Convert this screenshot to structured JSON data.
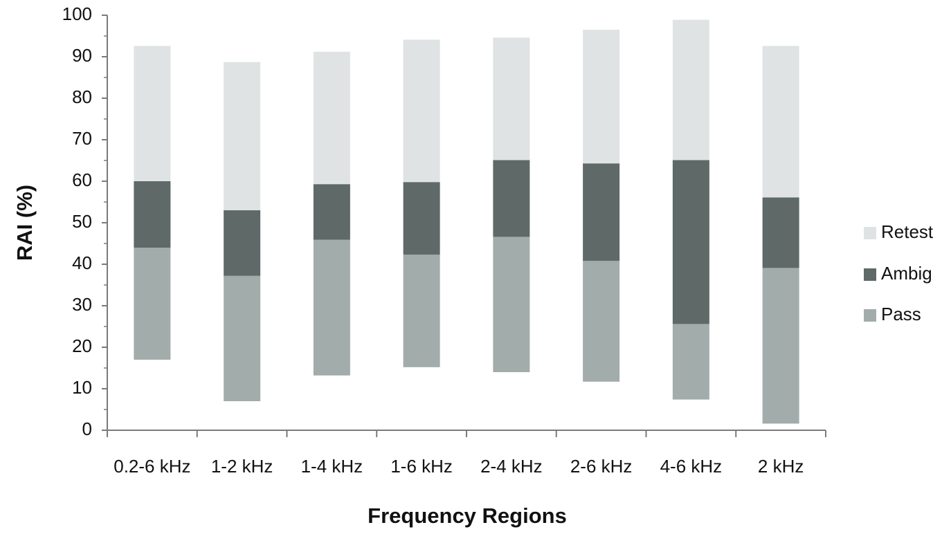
{
  "chart_data": {
    "type": "bar",
    "stacked": "floating",
    "xlabel": "Frequency Regions",
    "ylabel": "RAI (%)",
    "ylim": [
      0,
      100
    ],
    "yticks": [
      0,
      10,
      20,
      30,
      40,
      50,
      60,
      70,
      80,
      90,
      100
    ],
    "grid": false,
    "legend_position": "right",
    "categories": [
      "0.2-6 kHz",
      "1-2 kHz",
      "1-4 kHz",
      "1-6 kHz",
      "2-4 kHz",
      "2-6 kHz",
      "4-6 kHz",
      "2 kHz"
    ],
    "base": [
      17,
      7,
      13.2,
      15.2,
      14,
      11.7,
      7.4,
      1.6
    ],
    "series": [
      {
        "name": "Pass",
        "color": "#a2acab",
        "values": [
          27,
          30.2,
          32.7,
          27.1,
          32.6,
          29.1,
          18.2,
          37.5
        ]
      },
      {
        "name": "Ambig",
        "color": "#5e6968",
        "values": [
          16,
          15.8,
          13.4,
          17.5,
          18.5,
          23.5,
          39.5,
          17.0
        ]
      },
      {
        "name": "Retest",
        "color": "#dfe3e3",
        "values": [
          32.6,
          35.7,
          31.9,
          34.3,
          29.5,
          32.2,
          33.8,
          36.5
        ]
      }
    ],
    "legend_order": [
      "Retest",
      "Ambig",
      "Pass"
    ]
  }
}
